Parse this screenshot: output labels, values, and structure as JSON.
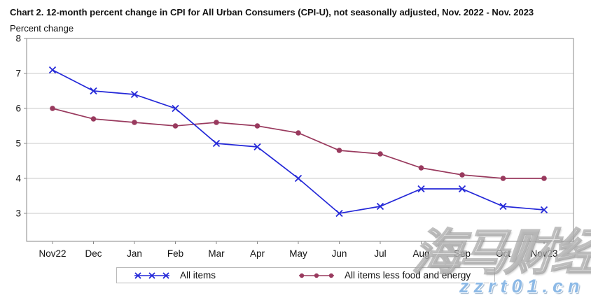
{
  "header": {
    "title": "Chart 2. 12-month percent change in CPI for All Urban Consumers (CPI-U), not seasonally adjusted, Nov. 2022 - Nov. 2023",
    "subtitle": "Percent change"
  },
  "colors": {
    "all_items_line": "#2428d8",
    "core_line": "#993a5e",
    "gridline": "#c8c8c8",
    "plot_border": "#8a8a8a",
    "tick_text": "#111111"
  },
  "chart_data": {
    "type": "line",
    "title": "Chart 2. 12-month percent change in CPI for All Urban Consumers (CPI-U), not seasonally adjusted, Nov. 2022 - Nov. 2023",
    "xlabel": "",
    "ylabel": "Percent change",
    "ylim": [
      2.2,
      8
    ],
    "yticks": [
      3,
      4,
      5,
      6,
      7,
      8
    ],
    "grid": true,
    "legend_position": "bottom",
    "categories": [
      "Nov22",
      "Dec",
      "Jan",
      "Feb",
      "Mar",
      "Apr",
      "May",
      "Jun",
      "Jul",
      "Aug",
      "Sep",
      "Oct",
      "Nov23"
    ],
    "series": [
      {
        "name": "All items",
        "marker": "x",
        "color": "#2428d8",
        "values": [
          7.1,
          6.5,
          6.4,
          6.0,
          5.0,
          4.9,
          4.0,
          3.0,
          3.2,
          3.7,
          3.7,
          3.2,
          3.1
        ]
      },
      {
        "name": "All items less food and energy",
        "marker": "circle",
        "color": "#993a5e",
        "values": [
          6.0,
          5.7,
          5.6,
          5.5,
          5.6,
          5.5,
          5.3,
          4.8,
          4.7,
          4.3,
          4.1,
          4.0,
          4.0
        ]
      }
    ]
  },
  "legend": {
    "items": [
      {
        "label": "All items"
      },
      {
        "label": "All items less food and energy"
      }
    ]
  },
  "watermark": {
    "cjk_text": "海马财经",
    "url_text": "zzrt01.cn"
  }
}
